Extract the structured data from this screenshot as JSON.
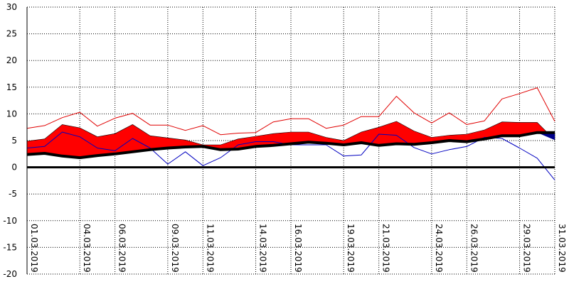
{
  "chart_data": {
    "type": "area",
    "title": "",
    "xlabel": "",
    "ylabel": "",
    "ylim": [
      -20,
      30
    ],
    "y_ticks": [
      30,
      25,
      20,
      15,
      10,
      5,
      0,
      -5,
      -10,
      -15,
      -20
    ],
    "grid": true,
    "x_tick_labels": [
      "01.03.2019",
      "04.03.2019",
      "06.03.2019",
      "09.03.2019",
      "11.03.2019",
      "14.03.2019",
      "16.03.2019",
      "19.03.2019",
      "21.03.2019",
      "24.03.2019",
      "26.03.2019",
      "29.03.2019",
      "31.03.2019"
    ],
    "x_tick_days": [
      1,
      4,
      6,
      9,
      11,
      14,
      16,
      19,
      21,
      24,
      26,
      29,
      31
    ],
    "x_range_days": [
      1,
      31
    ],
    "series": [
      {
        "role": "max_line",
        "color": "#e00000",
        "values": [
          7.3,
          7.8,
          9.3,
          10.3,
          7.7,
          9.2,
          10.1,
          7.9,
          7.9,
          6.9,
          7.8,
          6.1,
          6.4,
          6.5,
          8.5,
          9.1,
          9.1,
          7.3,
          7.9,
          9.5,
          9.5,
          13.3,
          10.2,
          8.3,
          10.2,
          8.0,
          8.7,
          12.8,
          13.8,
          14.9,
          8.6
        ]
      },
      {
        "role": "min_line",
        "color": "#0000c0",
        "values": [
          3.6,
          3.9,
          6.6,
          5.7,
          3.6,
          3.1,
          5.4,
          3.6,
          0.6,
          2.9,
          0.3,
          1.8,
          4.2,
          4.8,
          4.8,
          4.2,
          4.2,
          4.2,
          2.1,
          2.3,
          6.2,
          6.0,
          3.7,
          2.5,
          3.3,
          3.9,
          5.6,
          5.4,
          3.6,
          1.7,
          -2.4
        ]
      },
      {
        "role": "upper_band",
        "color": "#ff0000",
        "values": [
          4.9,
          5.3,
          8.0,
          7.4,
          5.7,
          6.3,
          8.0,
          5.9,
          5.5,
          5.1,
          4.2,
          4.2,
          5.3,
          5.8,
          6.3,
          6.6,
          6.6,
          5.6,
          5.0,
          6.6,
          7.5,
          8.6,
          6.8,
          5.6,
          6.0,
          6.2,
          7.0,
          8.5,
          8.4,
          8.4,
          5.1
        ]
      },
      {
        "role": "mean_thick_line",
        "color": "#000000",
        "values": [
          2.4,
          2.6,
          2.1,
          1.8,
          2.2,
          2.5,
          2.9,
          3.3,
          3.6,
          3.8,
          3.9,
          3.3,
          3.4,
          3.9,
          4.1,
          4.4,
          4.7,
          4.5,
          4.2,
          4.6,
          4.1,
          4.4,
          4.3,
          4.6,
          5.0,
          4.8,
          5.3,
          5.9,
          5.9,
          6.5,
          6.5
        ]
      }
    ],
    "zero_line": 0
  }
}
